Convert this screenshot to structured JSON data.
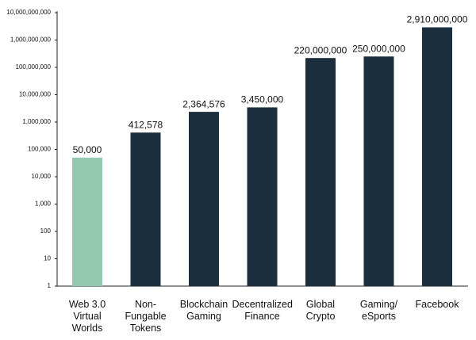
{
  "chart_data": {
    "type": "bar",
    "log_scale": true,
    "categories": [
      "Web 3.0\nVirtual\nWorlds",
      "Non-\nFungable\nTokens",
      "Blockchain\nGaming",
      "Decentralized\nFinance",
      "Global\nCrypto",
      "Gaming/\neSports",
      "Facebook"
    ],
    "values": [
      50000,
      412578,
      2364576,
      3450000,
      220000000,
      250000000,
      2910000000
    ],
    "value_labels": [
      "50,000",
      "412,578",
      "2,364,576",
      "3,450,000",
      "220,000,000",
      "250,000,000",
      "2,910,000,000"
    ],
    "colors": [
      "#95c8b0",
      "#1b2f3e",
      "#1b2f3e",
      "#1b2f3e",
      "#1b2f3e",
      "#1b2f3e",
      "#1b2f3e"
    ],
    "ylim": [
      1,
      10000000000
    ],
    "yticks": [
      1,
      10,
      100,
      {
        "value": 1000,
        "label": "1,000"
      },
      {
        "value": 10000,
        "label": "10,000"
      },
      {
        "value": 100000,
        "label": "100,000"
      },
      {
        "value": 1000000,
        "label": "1,000,000"
      },
      {
        "value": 10000000,
        "label": "10,000,000"
      },
      {
        "value": 100000000,
        "label": "100,000,000"
      },
      {
        "value": 1000000000,
        "label": "1,000,000,000"
      },
      {
        "value": 10000000000,
        "label": "10,000,000,000"
      }
    ],
    "grid": false
  }
}
